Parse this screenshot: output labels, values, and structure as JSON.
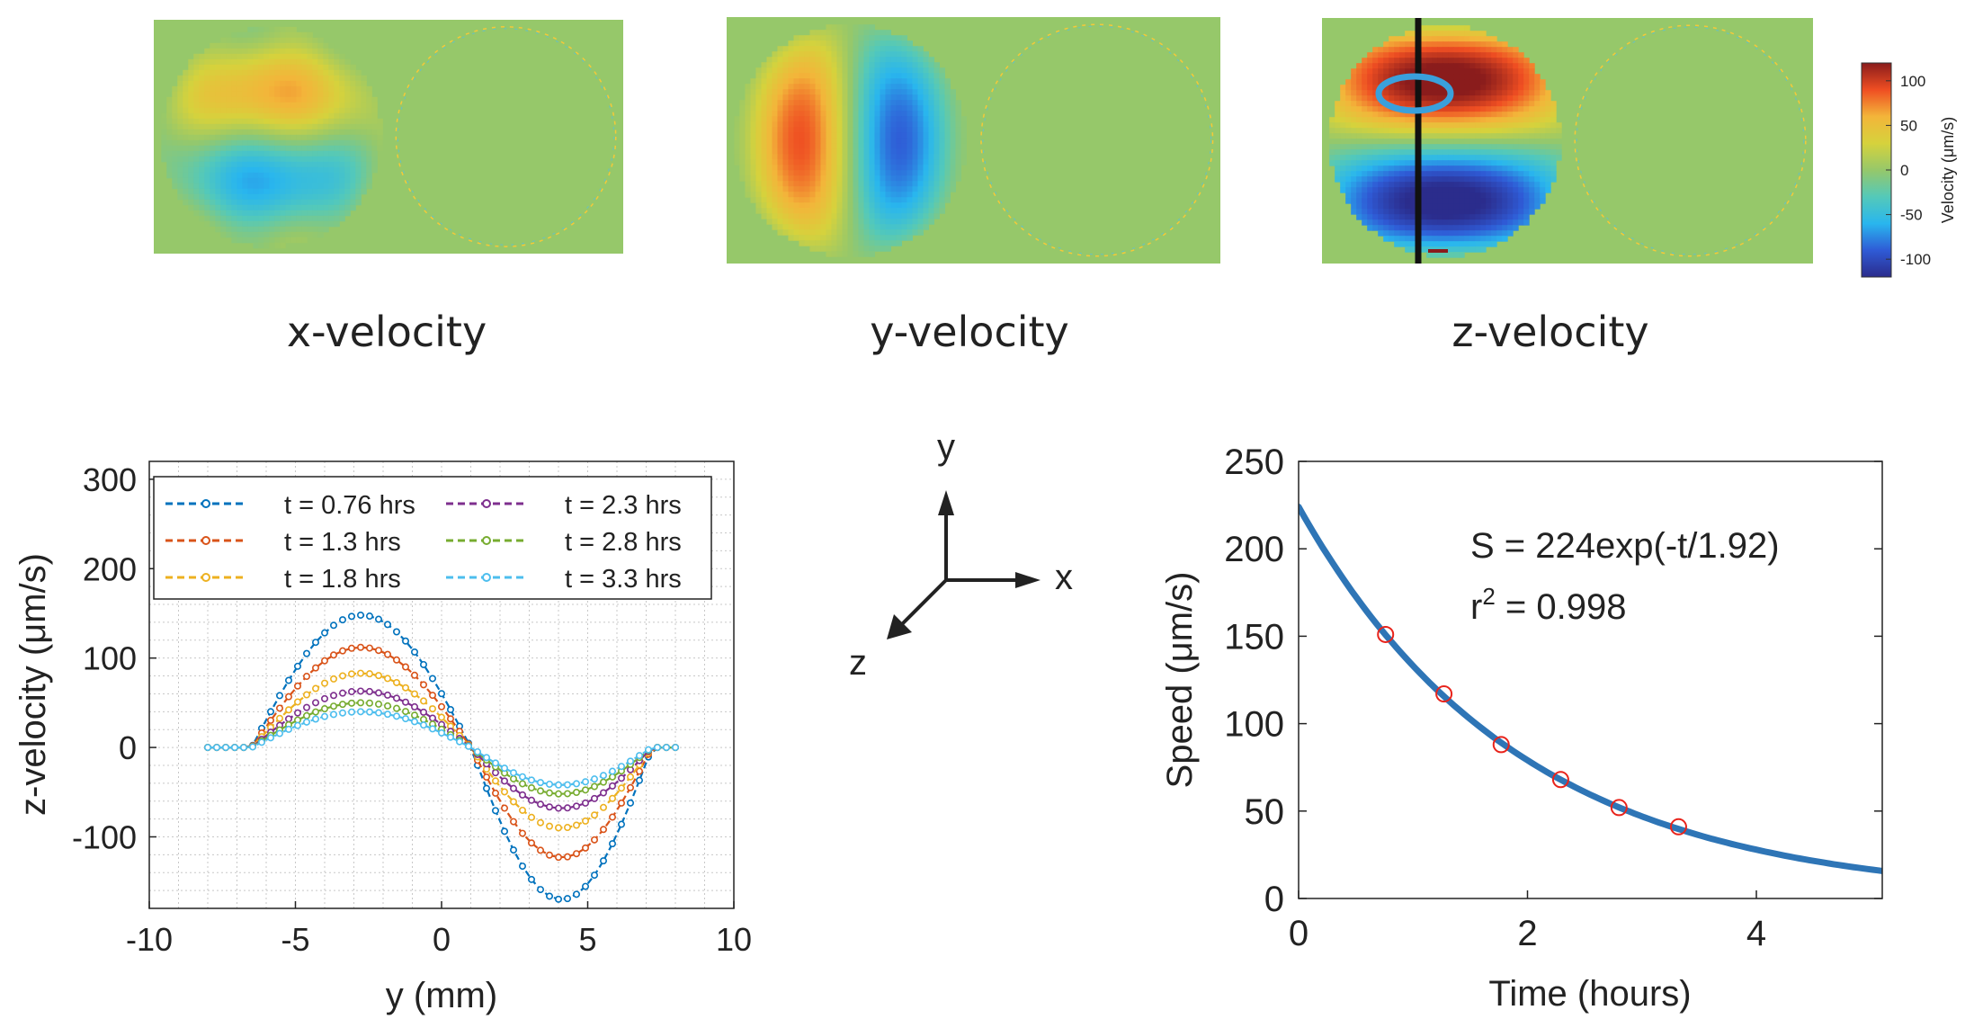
{
  "heatmaps": [
    {
      "label": "x-velocity",
      "pattern": "x"
    },
    {
      "label": "y-velocity",
      "pattern": "y"
    },
    {
      "label": "z-velocity",
      "pattern": "z"
    }
  ],
  "colorbar": {
    "label": "Velocity (μm/s)",
    "ticks": [
      100,
      50,
      0,
      -50,
      -100
    ],
    "range": [
      -120,
      120
    ],
    "stops": [
      "#2b2c8c",
      "#2f5bd6",
      "#29b6ee",
      "#54c9b9",
      "#96c86a",
      "#d6d23c",
      "#f3b53a",
      "#ef4e22",
      "#8a1c1c"
    ]
  },
  "axes_diagram": {
    "x": "x",
    "y": "y",
    "z": "z"
  },
  "chart_data": [
    {
      "type": "line",
      "title": "",
      "xlabel": "y (mm)",
      "ylabel": "z-velocity (μm/s)",
      "xlim": [
        -10,
        10
      ],
      "ylim": [
        -180,
        320
      ],
      "xticks": [
        -10,
        -5,
        0,
        5,
        10
      ],
      "yticks": [
        300,
        200,
        100,
        0,
        -100
      ],
      "grid": true,
      "legend_position": "top-left",
      "series": [
        {
          "name": "t = 0.76 hrs",
          "color": "#0072bd",
          "amplitude": 148,
          "trough": 170
        },
        {
          "name": "t = 1.3 hrs",
          "color": "#d95319",
          "amplitude": 112,
          "trough": 123
        },
        {
          "name": "t = 1.8 hrs",
          "color": "#edb120",
          "amplitude": 83,
          "trough": 90
        },
        {
          "name": "t = 2.3 hrs",
          "color": "#7e2f8e",
          "amplitude": 63,
          "trough": 68
        },
        {
          "name": "t = 2.8 hrs",
          "color": "#77ac30",
          "amplitude": 50,
          "trough": 52
        },
        {
          "name": "t = 3.3 hrs",
          "color": "#4dbeee",
          "amplitude": 40,
          "trough": 42
        }
      ],
      "profile": {
        "x_start": -8,
        "x_end": 8,
        "x_zero": 1,
        "x_peak": -3.2,
        "x_trough": 4.6,
        "x_edge_left": -6.5,
        "x_edge_right": 7.2
      }
    },
    {
      "type": "line",
      "title": "",
      "xlabel": "Time (hours)",
      "ylabel": "Speed (μm/s)",
      "xlim": [
        0,
        5.1
      ],
      "ylim": [
        0,
        250
      ],
      "xticks": [
        0,
        2,
        4
      ],
      "yticks": [
        250,
        200,
        150,
        100,
        50,
        0
      ],
      "fit": {
        "a": 224,
        "tau": 1.92,
        "color": "#2e75b6",
        "name": "S = 224exp(-t/1.92)"
      },
      "r2_text": "r",
      "r2_sup": "2",
      "r2_value": " = 0.998",
      "points": {
        "x": [
          0.76,
          1.27,
          1.77,
          2.29,
          2.8,
          3.32
        ],
        "y": [
          151,
          117,
          88,
          68,
          52,
          41
        ],
        "color": "#e8231b"
      }
    }
  ]
}
